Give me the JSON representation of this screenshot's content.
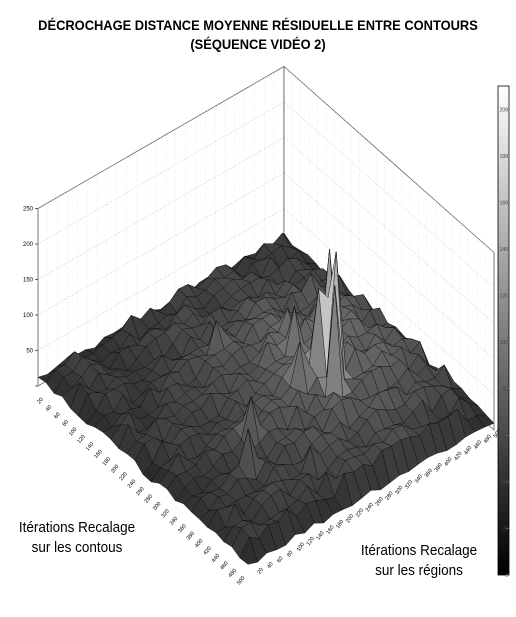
{
  "chart_data": {
    "type": "surface3d",
    "title_lines": [
      "DÉCROCHAGE DISTANCE MOYENNE RÉSIDUELLE ENTRE CONTOURS",
      "(SÉQUENCE VIDÉO 2)"
    ],
    "x_axis_label_lines": [
      "Itérations Recalage",
      "sur les contous"
    ],
    "y_axis_label_lines": [
      "Itérations Recalage",
      "sur les régions"
    ],
    "z_ticks": [
      0,
      50,
      100,
      150,
      200,
      250
    ],
    "zlim": [
      0,
      250
    ],
    "x_ticks": [
      20,
      40,
      60,
      80,
      100,
      120,
      140,
      160,
      180,
      200,
      220,
      240,
      260,
      280,
      300,
      320,
      340,
      360,
      380,
      400,
      420,
      440,
      460,
      480,
      500
    ],
    "y_ticks": [
      20,
      40,
      60,
      80,
      100,
      120,
      140,
      160,
      180,
      200,
      220,
      240,
      260,
      280,
      300,
      320,
      340,
      360,
      380,
      400,
      420,
      440,
      460,
      480,
      500
    ],
    "xlim": [
      0,
      500
    ],
    "ylim": [
      0,
      500
    ],
    "colorbar_ticks": [
      0,
      20,
      40,
      60,
      80,
      100,
      120,
      140,
      160,
      180,
      200
    ],
    "colorbar_range": [
      0,
      210
    ],
    "colormap": "gray",
    "grid": true,
    "peaks": [
      {
        "x": 330,
        "y": 330,
        "z": 230
      },
      {
        "x": 290,
        "y": 350,
        "z": 205
      },
      {
        "x": 350,
        "y": 300,
        "z": 200
      },
      {
        "x": 310,
        "y": 310,
        "z": 175
      },
      {
        "x": 300,
        "y": 330,
        "z": 155
      },
      {
        "x": 255,
        "y": 300,
        "z": 120
      },
      {
        "x": 310,
        "y": 270,
        "z": 115
      },
      {
        "x": 220,
        "y": 330,
        "z": 90
      },
      {
        "x": 150,
        "y": 430,
        "z": 70
      },
      {
        "x": 330,
        "y": 160,
        "z": 95
      },
      {
        "x": 360,
        "y": 120,
        "z": 85
      },
      {
        "x": 160,
        "y": 230,
        "z": 80
      },
      {
        "x": 430,
        "y": 200,
        "z": 60
      },
      {
        "x": 230,
        "y": 420,
        "z": 55
      }
    ]
  }
}
